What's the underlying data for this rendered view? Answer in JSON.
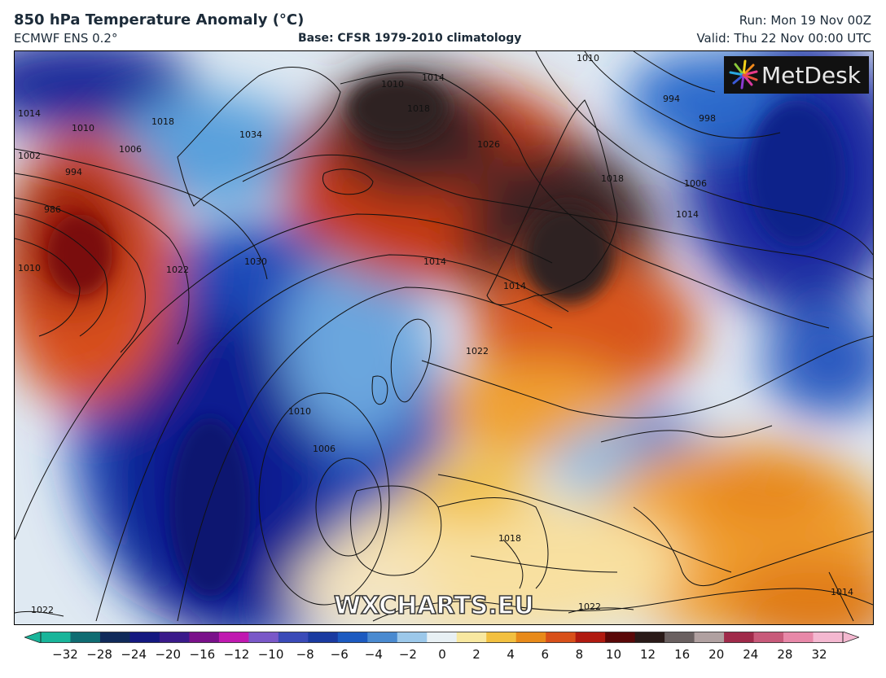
{
  "header": {
    "title": "850 hPa Temperature Anomaly (°C)",
    "model": "ECMWF ENS 0.2°",
    "base": "Base: CFSR 1979-2010 climatology",
    "run": "Run: Mon 19 Nov 00Z",
    "valid": "Valid: Thu 22 Nov 00:00 UTC"
  },
  "logo": {
    "text": "MetDesk",
    "icon": "metdesk-starburst-icon"
  },
  "watermark": "WXCHARTS.EU",
  "map": {
    "contour_labels": [
      "1014",
      "1010",
      "1002",
      "994",
      "986",
      "1006",
      "1010",
      "1018",
      "1022",
      "1034",
      "1030",
      "1010",
      "1018",
      "1014",
      "1026",
      "1022",
      "1010",
      "1006",
      "1018",
      "1014",
      "1018",
      "1022",
      "1022",
      "994",
      "998",
      "1010",
      "1006",
      "1014",
      "1014",
      "1014"
    ],
    "colors": {
      "cold_deep": "#0a1a8a",
      "cold": "#2a6ad0",
      "cool": "#9cc6ea",
      "neutral": "#f4f2ee",
      "warm": "#f6c44a",
      "hot": "#d8501c",
      "very_hot": "#7a0a0a",
      "extreme": "#3a2a28"
    }
  },
  "colorbar": {
    "ticks": [
      "−32",
      "−28",
      "−24",
      "−20",
      "−16",
      "−12",
      "−10",
      "−8",
      "−6",
      "−4",
      "−2",
      "0",
      "2",
      "4",
      "6",
      "8",
      "10",
      "12",
      "16",
      "20",
      "24",
      "28",
      "32"
    ],
    "colors": [
      "#18b59a",
      "#0f6c72",
      "#102a5a",
      "#141880",
      "#3a1a8a",
      "#7a108a",
      "#c018b0",
      "#7a58c8",
      "#3a4ab8",
      "#1a3aa0",
      "#1c5ac0",
      "#4a8ad0",
      "#9cc8ea",
      "#e8f0f4",
      "#f8e8a0",
      "#f2c040",
      "#e88a1a",
      "#d8501a",
      "#b01a10",
      "#5a0808",
      "#2a1a18",
      "#6a6060",
      "#b0a0a0",
      "#a02a4a",
      "#c85a7a",
      "#e888a8",
      "#f4b8d0"
    ]
  }
}
